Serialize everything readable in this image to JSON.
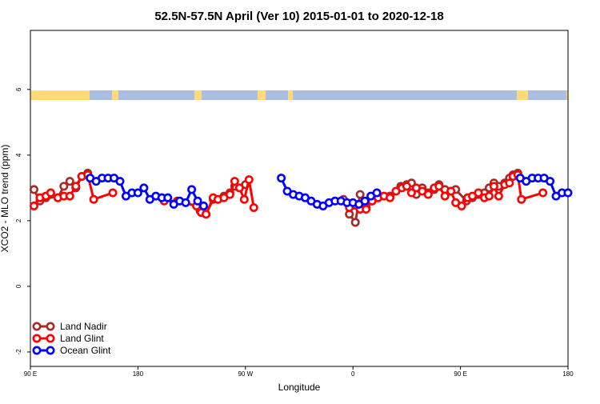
{
  "chart_data": {
    "type": "line",
    "title": "52.5N-57.5N April (Ver 10)   2015-01-01 to 2020-12-18",
    "x_label": "Longitude",
    "y_label": "XCO2 - MLO trend (ppm)",
    "xlim": [
      90,
      540
    ],
    "ylim": [
      -2.44,
      7.8
    ],
    "xticks": [
      {
        "value": 90,
        "label": "90 E"
      },
      {
        "value": 180,
        "label": "180"
      },
      {
        "value": 270,
        "label": "90 W"
      },
      {
        "value": 360,
        "label": "0"
      },
      {
        "value": 450,
        "label": "90 E"
      },
      {
        "value": 540,
        "label": "180"
      }
    ],
    "yticks": [
      -2,
      0,
      2,
      4,
      6
    ],
    "legend": "bottom-left",
    "series": [
      {
        "name": "Land Nadir",
        "color": "#a52a2a",
        "x": [
          93,
          98,
          103,
          107,
          113,
          118,
          123,
          128,
          133,
          138,
          null,
          232,
          237,
          243,
          247,
          252,
          257,
          261,
          265,
          270,
          null,
          352,
          357,
          362,
          366,
          371,
          376,
          381,
          391,
          400,
          405,
          409,
          413,
          418,
          423,
          428,
          432,
          437,
          442,
          446,
          455,
          460,
          465,
          470,
          474,
          478,
          482,
          487,
          491,
          494,
          498
        ],
        "values": [
          2.95,
          2.6,
          2.7,
          2.8,
          2.7,
          3.05,
          3.2,
          3.0,
          3.35,
          3.45,
          null,
          2.3,
          2.2,
          2.65,
          2.65,
          2.75,
          2.85,
          3.05,
          3.0,
          3.1,
          null,
          2.65,
          2.2,
          1.95,
          2.8,
          2.4,
          2.6,
          2.7,
          2.75,
          3.05,
          3.1,
          3.15,
          2.8,
          3.0,
          2.85,
          2.95,
          3.1,
          2.95,
          2.9,
          2.95,
          2.6,
          2.7,
          2.8,
          2.85,
          3.0,
          3.15,
          3.05,
          3.15,
          3.3,
          3.4,
          3.45
        ]
      },
      {
        "name": "Land Glint",
        "color": "#ff0000",
        "x": [
          93,
          98,
          103,
          107,
          113,
          118,
          123,
          128,
          133,
          138,
          143,
          159,
          null,
          202,
          213,
          229,
          233,
          237,
          243,
          247,
          252,
          257,
          261,
          265,
          269,
          273,
          277,
          null,
          357,
          366,
          371,
          376,
          381,
          386,
          391,
          396,
          401,
          405,
          409,
          413,
          418,
          423,
          428,
          432,
          437,
          442,
          446,
          451,
          456,
          460,
          465,
          470,
          474,
          478,
          482,
          487,
          491,
          494,
          498,
          501,
          519
        ],
        "values": [
          2.45,
          2.7,
          2.75,
          2.85,
          2.7,
          2.75,
          2.75,
          3.05,
          3.35,
          3.4,
          2.65,
          2.85,
          null,
          2.6,
          2.6,
          2.45,
          2.25,
          2.2,
          2.7,
          2.65,
          2.7,
          2.8,
          3.2,
          3.0,
          2.65,
          3.25,
          2.4,
          null,
          2.4,
          2.35,
          2.35,
          2.6,
          2.7,
          2.75,
          2.7,
          2.9,
          3.0,
          3.05,
          2.85,
          3.0,
          2.9,
          2.8,
          3.0,
          3.05,
          2.75,
          2.9,
          2.55,
          2.45,
          2.7,
          2.75,
          2.85,
          2.7,
          2.75,
          3.05,
          2.75,
          3.1,
          3.15,
          3.35,
          3.4,
          2.65,
          2.85
        ]
      },
      {
        "name": "Ocean Glint",
        "color": "#0000ff",
        "x": [
          140,
          145,
          150,
          155,
          160,
          165,
          170,
          175,
          180,
          185,
          190,
          195,
          200,
          205,
          210,
          215,
          220,
          225,
          230,
          235,
          null,
          300,
          305,
          310,
          315,
          320,
          325,
          330,
          335,
          340,
          345,
          350,
          355,
          360,
          365,
          370,
          375,
          380,
          null,
          500,
          505,
          510,
          515,
          520,
          525,
          530,
          535,
          540
        ],
        "values": [
          3.3,
          3.2,
          3.3,
          3.3,
          3.3,
          3.2,
          2.75,
          2.85,
          2.85,
          3.0,
          2.65,
          2.75,
          2.7,
          2.7,
          2.5,
          2.6,
          2.55,
          2.95,
          2.6,
          2.45,
          null,
          3.3,
          2.9,
          2.8,
          2.75,
          2.7,
          2.6,
          2.5,
          2.45,
          2.55,
          2.6,
          2.6,
          2.55,
          2.55,
          2.5,
          2.6,
          2.75,
          2.85,
          null,
          3.3,
          3.2,
          3.3,
          3.3,
          3.3,
          3.2,
          2.75,
          2.85,
          2.85
        ]
      }
    ]
  }
}
